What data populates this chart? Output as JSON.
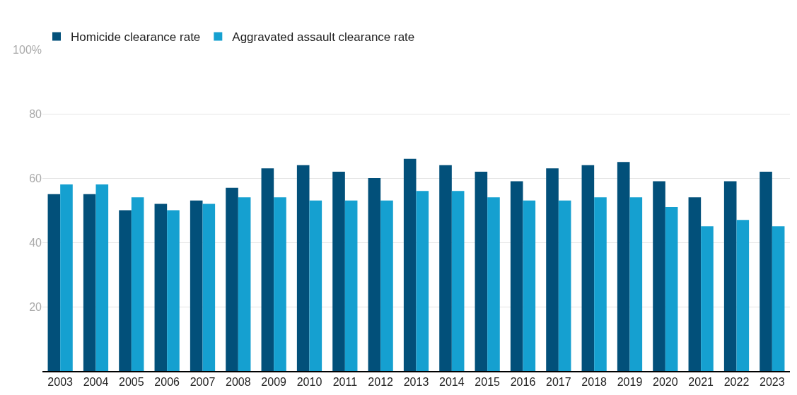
{
  "chart_data": {
    "type": "bar",
    "categories": [
      "2003",
      "2004",
      "2005",
      "2006",
      "2007",
      "2008",
      "2009",
      "2010",
      "2011",
      "2012",
      "2013",
      "2014",
      "2015",
      "2016",
      "2017",
      "2018",
      "2019",
      "2020",
      "2021",
      "2022",
      "2023"
    ],
    "series": [
      {
        "name": "Homicide clearance rate",
        "color": "#02507a",
        "values": [
          55,
          55,
          50,
          52,
          53,
          57,
          63,
          64,
          62,
          60,
          66,
          64,
          62,
          59,
          63,
          64,
          65,
          59,
          54,
          59,
          62
        ]
      },
      {
        "name": "Aggravated assault clearance rate",
        "color": "#15a0d0",
        "values": [
          58,
          58,
          54,
          50,
          52,
          54,
          54,
          53,
          53,
          53,
          56,
          56,
          54,
          53,
          53,
          54,
          54,
          51,
          45,
          47,
          45
        ]
      }
    ],
    "ylim": [
      0,
      100
    ],
    "yticks": [
      20,
      40,
      60,
      80,
      {
        "value": 100,
        "label": "100%"
      }
    ],
    "grid": "y",
    "legend": "top left"
  }
}
